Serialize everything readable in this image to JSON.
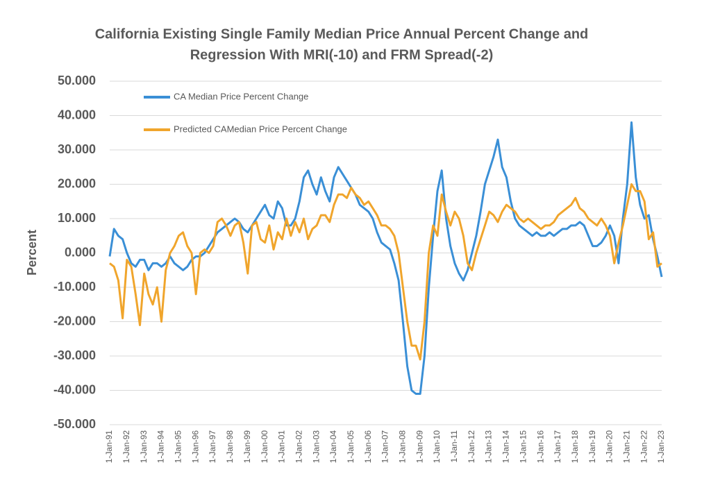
{
  "chart_data": {
    "type": "line",
    "title": [
      "California Existing Single Family Median Price Annual Percent Change and",
      "Regression With MRI(-10) and FRM Spread(-2)"
    ],
    "y_label": "Percent",
    "categories": [
      "1-Jan-91",
      null,
      null,
      null,
      "1-Jan-92",
      null,
      null,
      null,
      "1-Jan-93",
      null,
      null,
      null,
      "1-Jan-94",
      null,
      null,
      null,
      "1-Jan-95",
      null,
      null,
      null,
      "1-Jan-96",
      null,
      null,
      null,
      "1-Jan-97",
      null,
      null,
      null,
      "1-Jan-98",
      null,
      null,
      null,
      "1-Jan-99",
      null,
      null,
      null,
      "1-Jan-00",
      null,
      null,
      null,
      "1-Jan-01",
      null,
      null,
      null,
      "1-Jan-02",
      null,
      null,
      null,
      "1-Jan-03",
      null,
      null,
      null,
      "1-Jan-04",
      null,
      null,
      null,
      "1-Jan-05",
      null,
      null,
      null,
      "1-Jan-06",
      null,
      null,
      null,
      "1-Jan-07",
      null,
      null,
      null,
      "1-Jan-08",
      null,
      null,
      null,
      "1-Jan-09",
      null,
      null,
      null,
      "1-Jan-10",
      null,
      null,
      null,
      "1-Jan-11",
      null,
      null,
      null,
      "1-Jan-12",
      null,
      null,
      null,
      "1-Jan-13",
      null,
      null,
      null,
      "1-Jan-14",
      null,
      null,
      null,
      "1-Jan-15",
      null,
      null,
      null,
      "1-Jan-16",
      null,
      null,
      null,
      "1-Jan-17",
      null,
      null,
      null,
      "1-Jan-18",
      null,
      null,
      null,
      "1-Jan-19",
      null,
      null,
      null,
      "1-Jan-20",
      null,
      null,
      null,
      "1-Jan-21",
      null,
      null,
      null,
      "1-Jan-22",
      null,
      null,
      null,
      "1-Jan-23"
    ],
    "series": [
      {
        "name": "CA Median Price Percent Change",
        "color": "#3A8FD6",
        "values": [
          -1,
          7,
          5,
          4,
          0,
          -3,
          -4,
          -2,
          -2,
          -5,
          -3,
          -3,
          -4,
          -3,
          -1,
          -3,
          -4,
          -5,
          -4,
          -2,
          -1,
          -1,
          0,
          2,
          4,
          6,
          7,
          8,
          9,
          10,
          9,
          7,
          6,
          8,
          10,
          12,
          14,
          11,
          10,
          15,
          13,
          8,
          8,
          10,
          15,
          22,
          24,
          20,
          17,
          22,
          18,
          15,
          22,
          25,
          23,
          21,
          19,
          17,
          14,
          13,
          12,
          10,
          6,
          3,
          2,
          1,
          -3,
          -8,
          -20,
          -33,
          -40,
          -41,
          -41,
          -30,
          -10,
          5,
          18,
          24,
          10,
          2,
          -3,
          -6,
          -8,
          -5,
          0,
          5,
          12,
          20,
          24,
          28,
          33,
          25,
          22,
          15,
          10,
          8,
          7,
          6,
          5,
          6,
          5,
          5,
          6,
          5,
          6,
          7,
          7,
          8,
          8,
          9,
          8,
          5,
          2,
          2,
          3,
          5,
          8,
          5,
          -3,
          10,
          20,
          38,
          22,
          14,
          10,
          11,
          4,
          -1,
          -7
        ]
      },
      {
        "name": "Predicted CAMedian Price Percent Change",
        "color": "#F0A52C",
        "values": [
          -3,
          -4,
          -8,
          -19,
          -2,
          -4,
          -12,
          -21,
          -6,
          -12,
          -15,
          -10,
          -20,
          -5,
          0,
          2,
          5,
          6,
          2,
          0,
          -12,
          0,
          1,
          0,
          2,
          9,
          10,
          8,
          5,
          8,
          9,
          3,
          -6,
          8,
          9,
          4,
          3,
          8,
          1,
          6,
          4,
          10,
          5,
          9,
          6,
          10,
          4,
          7,
          8,
          11,
          11,
          9,
          14,
          17,
          17,
          16,
          19,
          17,
          16,
          14,
          15,
          13,
          11,
          8,
          8,
          7,
          5,
          0,
          -10,
          -20,
          -27,
          -27,
          -31,
          -20,
          0,
          8,
          5,
          17,
          12,
          8,
          12,
          10,
          5,
          -3,
          -5,
          0,
          4,
          8,
          12,
          11,
          9,
          12,
          14,
          13,
          12,
          10,
          9,
          10,
          9,
          8,
          7,
          8,
          8,
          9,
          11,
          12,
          13,
          14,
          16,
          13,
          12,
          10,
          9,
          8,
          10,
          8,
          5,
          -3,
          3,
          8,
          14,
          20,
          18,
          18,
          15,
          4,
          6,
          -4,
          -3
        ]
      }
    ],
    "ylim": [
      -50,
      50
    ],
    "yticks": [
      {
        "value": -50,
        "label": "-50.000"
      },
      {
        "value": -40,
        "label": "-40.000"
      },
      {
        "value": -30,
        "label": "-30.000"
      },
      {
        "value": -20,
        "label": "-20.000"
      },
      {
        "value": -10,
        "label": "-10.000"
      },
      {
        "value": 0,
        "label": "0.000"
      },
      {
        "value": 10,
        "label": "10.000"
      },
      {
        "value": 20,
        "label": "20.000"
      },
      {
        "value": 30,
        "label": "30.000"
      },
      {
        "value": 40,
        "label": "40.000"
      },
      {
        "value": 50,
        "label": "50.000"
      }
    ],
    "grid": true,
    "legend": "top-left"
  }
}
